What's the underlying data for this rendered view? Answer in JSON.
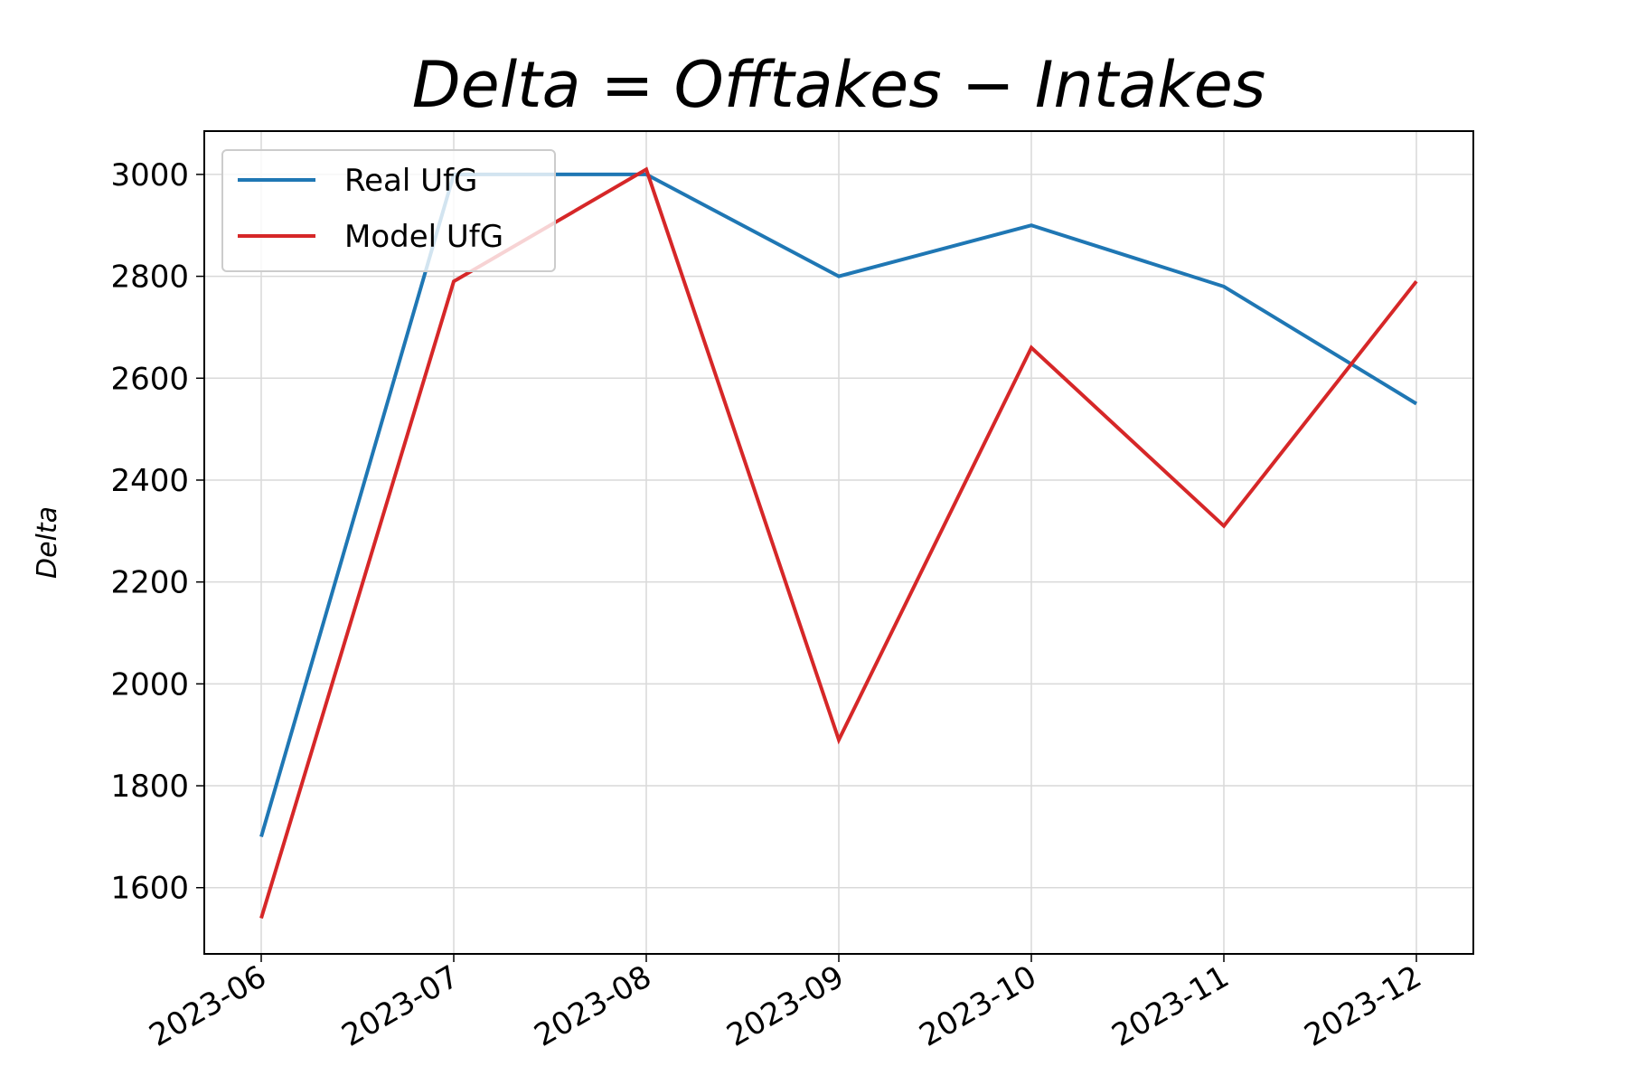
{
  "chart_data": {
    "type": "line",
    "title": "Delta = Offtakes − Intakes",
    "xlabel": "",
    "ylabel": "Delta",
    "x": [
      "2023-06",
      "2023-07",
      "2023-08",
      "2023-09",
      "2023-10",
      "2023-11",
      "2023-12"
    ],
    "series": [
      {
        "name": "Real UfG",
        "color": "#1f77b4",
        "values": [
          1700,
          3000,
          3000,
          2800,
          2900,
          2780,
          2550
        ]
      },
      {
        "name": "Model UfG",
        "color": "#d62728",
        "values": [
          1540,
          2790,
          3010,
          1890,
          2660,
          2310,
          2790
        ]
      }
    ],
    "ylim": [
      1470,
      3085
    ],
    "yticks": [
      1600,
      1800,
      2000,
      2200,
      2400,
      2600,
      2800,
      3000
    ],
    "grid": true,
    "legend_position": "upper-left"
  }
}
